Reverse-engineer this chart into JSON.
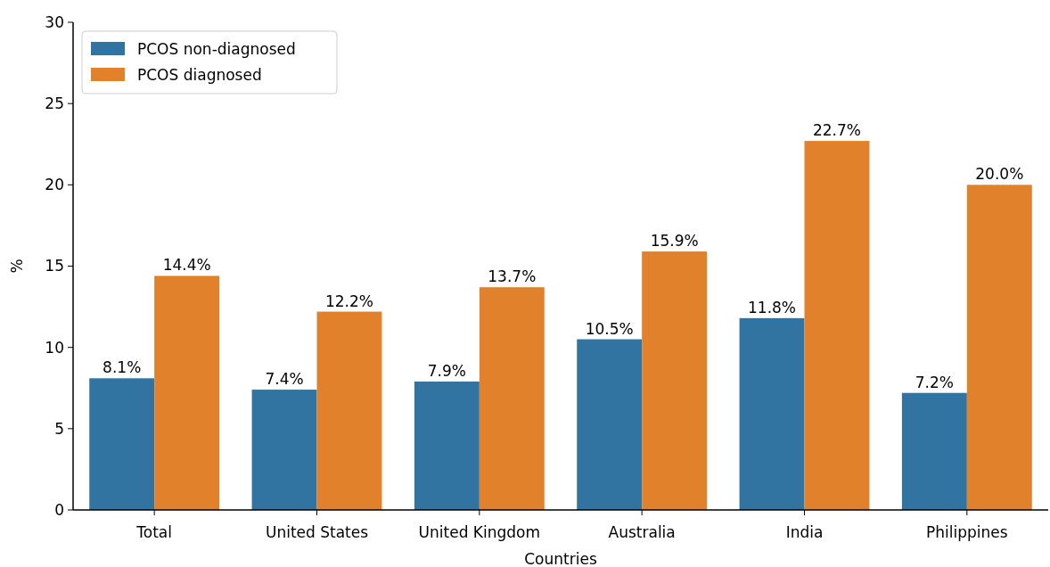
{
  "chart_data": {
    "type": "bar",
    "xlabel": "Countries",
    "ylabel": "%",
    "categories": [
      "Total",
      "United States",
      "United Kingdom",
      "Australia",
      "India",
      "Philippines"
    ],
    "series": [
      {
        "name": "PCOS non-diagnosed",
        "color": "#3274a1",
        "values": [
          8.1,
          7.4,
          7.9,
          10.5,
          11.8,
          7.2
        ],
        "value_labels": [
          "8.1%",
          "7.4%",
          "7.9%",
          "10.5%",
          "11.8%",
          "7.2%"
        ]
      },
      {
        "name": "PCOS diagnosed",
        "color": "#e1812c",
        "values": [
          14.4,
          12.2,
          13.7,
          15.9,
          22.7,
          20.0
        ],
        "value_labels": [
          "14.4%",
          "12.2%",
          "13.7%",
          "15.9%",
          "22.7%",
          "20.0%"
        ]
      }
    ],
    "ylim": [
      0,
      30
    ],
    "yticks": [
      0,
      5,
      10,
      15,
      20,
      25,
      30
    ],
    "grid": false,
    "legend": "top left"
  }
}
